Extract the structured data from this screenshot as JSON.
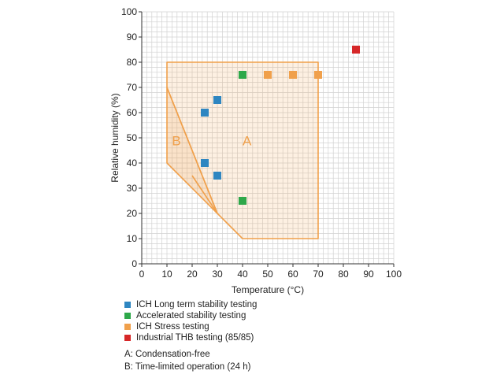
{
  "chart_data": {
    "type": "scatter",
    "xlabel": "Temperature (°C)",
    "ylabel": "Relative humidity (%)",
    "xlim": [
      0,
      100
    ],
    "ylim": [
      0,
      100
    ],
    "xticks": [
      0,
      10,
      20,
      30,
      40,
      50,
      60,
      70,
      80,
      90,
      100
    ],
    "yticks": [
      0,
      10,
      20,
      30,
      40,
      50,
      60,
      70,
      80,
      90,
      100
    ],
    "grid": true,
    "regions": [
      {
        "name": "A",
        "label": "A",
        "label_at": [
          40,
          47
        ],
        "polygon": [
          [
            10,
            80
          ],
          [
            70,
            80
          ],
          [
            70,
            10
          ],
          [
            40,
            10
          ],
          [
            30,
            20
          ],
          [
            10,
            70
          ]
        ]
      },
      {
        "name": "B",
        "label": "B",
        "label_at": [
          12,
          47
        ],
        "polygon": [
          [
            10,
            70
          ],
          [
            10,
            40
          ],
          [
            30,
            20
          ]
        ]
      }
    ],
    "region_extra_lines": [
      [
        [
          20,
          35
        ],
        [
          30,
          20
        ]
      ]
    ],
    "series": [
      {
        "name": "ICH Long term stability testing",
        "color": "#2e86c1",
        "points": [
          [
            25,
            60
          ],
          [
            30,
            65
          ],
          [
            25,
            40
          ],
          [
            30,
            35
          ]
        ]
      },
      {
        "name": "Accelerated stability testing",
        "color": "#2ea84a",
        "points": [
          [
            40,
            75
          ],
          [
            40,
            25
          ]
        ]
      },
      {
        "name": "ICH Stress testing",
        "color": "#f0a04b",
        "points": [
          [
            50,
            75
          ],
          [
            60,
            75
          ],
          [
            70,
            75
          ]
        ]
      },
      {
        "name": "Industrial THB testing (85/85)",
        "color": "#d62728",
        "points": [
          [
            85,
            85
          ]
        ]
      }
    ]
  },
  "notes": [
    "A: Condensation-free",
    "B: Time-limited operation (24 h)"
  ]
}
